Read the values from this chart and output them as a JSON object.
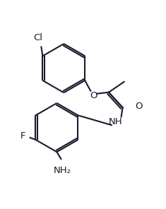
{
  "background_color": "#ffffff",
  "line_color": "#1a1a2e",
  "line_width": 1.5,
  "font_size": 9.5,
  "figsize": [
    2.35,
    2.96
  ],
  "dpi": 100,
  "cl_label": "Cl",
  "o_label": "O",
  "nh_label": "NH",
  "f_label": "F",
  "nh2_label": "NH₂",
  "carbonyl_o": "O"
}
